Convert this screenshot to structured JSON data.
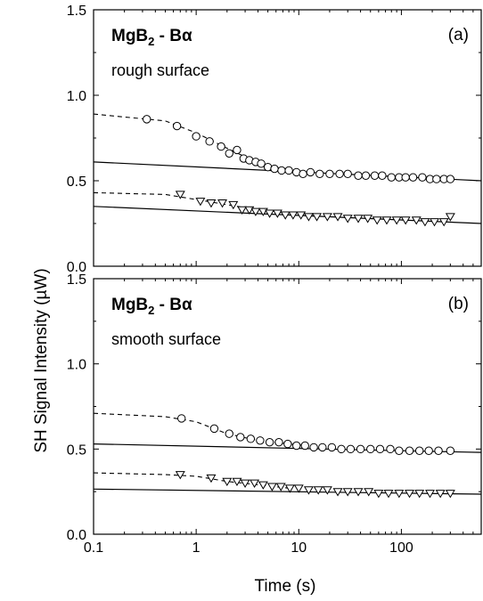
{
  "figure": {
    "ylabel": "SH Signal Intensity (µW)",
    "xlabel": "Time (s)",
    "x_ticks": [
      "0.1",
      "1",
      "10",
      "100"
    ],
    "y_ticks": [
      "0.0",
      "0.5",
      "1.0",
      "1.5"
    ]
  },
  "chart_data": [
    {
      "type": "scatter",
      "panel_letter": "(a)",
      "title_prefix": "MgB",
      "title_sub": "2",
      "title_suffix": " - Bα",
      "subtitle": "rough surface",
      "xlabel": "",
      "ylabel": "SH Signal Intensity (µW)",
      "xscale": "log",
      "xlim": [
        0.1,
        600
      ],
      "ylim": [
        0,
        1.5
      ],
      "series": [
        {
          "marker": "circle",
          "points": [
            [
              0.33,
              0.86
            ],
            [
              0.65,
              0.82
            ],
            [
              1.0,
              0.76
            ],
            [
              1.35,
              0.73
            ],
            [
              1.75,
              0.7
            ],
            [
              2.1,
              0.66
            ],
            [
              2.5,
              0.68
            ],
            [
              2.9,
              0.63
            ],
            [
              3.3,
              0.62
            ],
            [
              3.8,
              0.61
            ],
            [
              4.3,
              0.6
            ],
            [
              5.0,
              0.58
            ],
            [
              5.8,
              0.57
            ],
            [
              6.8,
              0.56
            ],
            [
              8.0,
              0.56
            ],
            [
              9.5,
              0.55
            ],
            [
              11,
              0.54
            ],
            [
              13,
              0.55
            ],
            [
              16,
              0.54
            ],
            [
              20,
              0.54
            ],
            [
              25,
              0.54
            ],
            [
              30,
              0.54
            ],
            [
              38,
              0.53
            ],
            [
              45,
              0.53
            ],
            [
              55,
              0.53
            ],
            [
              65,
              0.53
            ],
            [
              80,
              0.52
            ],
            [
              95,
              0.52
            ],
            [
              110,
              0.52
            ],
            [
              130,
              0.52
            ],
            [
              160,
              0.52
            ],
            [
              190,
              0.51
            ],
            [
              220,
              0.51
            ],
            [
              260,
              0.51
            ],
            [
              300,
              0.51
            ]
          ],
          "fit_dashed": [
            [
              0.1,
              0.89
            ],
            [
              0.5,
              0.85
            ],
            [
              1.0,
              0.78
            ],
            [
              2.0,
              0.69
            ],
            [
              3.0,
              0.64
            ],
            [
              5.0,
              0.59
            ],
            [
              8.0,
              0.56
            ],
            [
              12,
              0.55
            ]
          ],
          "fit_solid": [
            [
              0.1,
              0.61
            ],
            [
              600,
              0.5
            ]
          ]
        },
        {
          "marker": "triangle-down",
          "points": [
            [
              0.7,
              0.42
            ],
            [
              1.1,
              0.38
            ],
            [
              1.4,
              0.37
            ],
            [
              1.8,
              0.37
            ],
            [
              2.3,
              0.36
            ],
            [
              2.8,
              0.33
            ],
            [
              3.3,
              0.33
            ],
            [
              3.8,
              0.32
            ],
            [
              4.5,
              0.32
            ],
            [
              5.2,
              0.31
            ],
            [
              6.2,
              0.31
            ],
            [
              7.4,
              0.3
            ],
            [
              8.8,
              0.3
            ],
            [
              10.5,
              0.3
            ],
            [
              12.5,
              0.29
            ],
            [
              15,
              0.29
            ],
            [
              19,
              0.29
            ],
            [
              24,
              0.29
            ],
            [
              30,
              0.28
            ],
            [
              38,
              0.28
            ],
            [
              47,
              0.28
            ],
            [
              58,
              0.27
            ],
            [
              72,
              0.27
            ],
            [
              90,
              0.27
            ],
            [
              110,
              0.27
            ],
            [
              140,
              0.27
            ],
            [
              170,
              0.26
            ],
            [
              210,
              0.26
            ],
            [
              260,
              0.26
            ],
            [
              300,
              0.29
            ]
          ],
          "fit_dashed": [
            [
              0.1,
              0.43
            ],
            [
              0.5,
              0.42
            ],
            [
              1.0,
              0.39
            ],
            [
              2.0,
              0.36
            ],
            [
              4.0,
              0.33
            ],
            [
              8.0,
              0.31
            ]
          ],
          "fit_solid": [
            [
              0.1,
              0.35
            ],
            [
              600,
              0.25
            ]
          ]
        }
      ]
    },
    {
      "type": "scatter",
      "panel_letter": "(b)",
      "title_prefix": "MgB",
      "title_sub": "2",
      "title_suffix": " - Bα",
      "subtitle": "smooth surface",
      "xlabel": "Time (s)",
      "ylabel": "SH Signal Intensity (µW)",
      "xscale": "log",
      "xlim": [
        0.1,
        600
      ],
      "ylim": [
        0,
        1.5
      ],
      "series": [
        {
          "marker": "circle",
          "points": [
            [
              0.72,
              0.68
            ],
            [
              1.5,
              0.62
            ],
            [
              2.1,
              0.59
            ],
            [
              2.7,
              0.57
            ],
            [
              3.4,
              0.56
            ],
            [
              4.2,
              0.55
            ],
            [
              5.2,
              0.54
            ],
            [
              6.4,
              0.54
            ],
            [
              7.8,
              0.53
            ],
            [
              9.5,
              0.52
            ],
            [
              11.5,
              0.52
            ],
            [
              14,
              0.51
            ],
            [
              17,
              0.51
            ],
            [
              21,
              0.51
            ],
            [
              26,
              0.5
            ],
            [
              32,
              0.5
            ],
            [
              40,
              0.5
            ],
            [
              50,
              0.5
            ],
            [
              62,
              0.5
            ],
            [
              78,
              0.5
            ],
            [
              95,
              0.49
            ],
            [
              120,
              0.49
            ],
            [
              150,
              0.49
            ],
            [
              185,
              0.49
            ],
            [
              230,
              0.49
            ],
            [
              300,
              0.49
            ]
          ],
          "fit_dashed": [
            [
              0.1,
              0.71
            ],
            [
              0.5,
              0.69
            ],
            [
              1.0,
              0.66
            ],
            [
              2.0,
              0.59
            ],
            [
              4.0,
              0.55
            ],
            [
              8.0,
              0.53
            ],
            [
              12,
              0.52
            ]
          ],
          "fit_solid": [
            [
              0.1,
              0.53
            ],
            [
              600,
              0.48
            ]
          ]
        },
        {
          "marker": "triangle-down",
          "points": [
            [
              0.7,
              0.35
            ],
            [
              1.4,
              0.33
            ],
            [
              2.0,
              0.31
            ],
            [
              2.5,
              0.31
            ],
            [
              3.0,
              0.3
            ],
            [
              3.7,
              0.3
            ],
            [
              4.5,
              0.29
            ],
            [
              5.5,
              0.28
            ],
            [
              6.7,
              0.28
            ],
            [
              8.2,
              0.27
            ],
            [
              10,
              0.27
            ],
            [
              12.5,
              0.26
            ],
            [
              15.5,
              0.26
            ],
            [
              19,
              0.26
            ],
            [
              24,
              0.25
            ],
            [
              30,
              0.25
            ],
            [
              38,
              0.25
            ],
            [
              48,
              0.25
            ],
            [
              60,
              0.24
            ],
            [
              75,
              0.24
            ],
            [
              95,
              0.24
            ],
            [
              120,
              0.24
            ],
            [
              150,
              0.24
            ],
            [
              190,
              0.24
            ],
            [
              240,
              0.24
            ],
            [
              300,
              0.24
            ]
          ],
          "fit_dashed": [
            [
              0.1,
              0.36
            ],
            [
              0.5,
              0.35
            ],
            [
              1.0,
              0.34
            ],
            [
              2.0,
              0.31
            ],
            [
              4.0,
              0.29
            ],
            [
              8.0,
              0.27
            ]
          ],
          "fit_solid": [
            [
              0.1,
              0.265
            ],
            [
              600,
              0.235
            ]
          ]
        }
      ]
    }
  ]
}
